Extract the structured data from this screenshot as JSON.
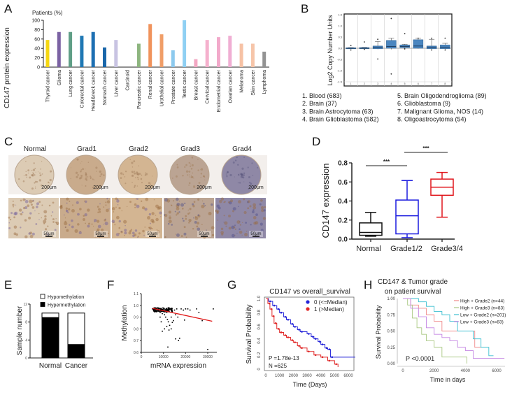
{
  "panels": {
    "A": "A",
    "B": "B",
    "C": "C",
    "D": "D",
    "E": "E",
    "F": "F",
    "G": "G",
    "H": "H"
  },
  "chart_data": [
    {
      "id": "A",
      "type": "bar",
      "title": "Patients (%)",
      "ylabel": "CD147 protein expression",
      "ylim": [
        0,
        100
      ],
      "yticks": [
        0,
        20,
        40,
        60,
        80,
        100
      ],
      "categories": [
        "Thyroid cancer",
        "Glioma",
        "Lung cancer",
        "Colorectal cancer",
        "Head&neck cancer",
        "Stomach cancer",
        "Liver cancer",
        "Carcinoid",
        "Pancreatic cancer",
        "Renal cancer",
        "Urothelial cancer",
        "Prostate cancer",
        "Testis cancer",
        "Breast cancer",
        "Cervical cancer",
        "Endometrial cancer",
        "Ovarian cancer",
        "Melanoma",
        "Skin cancer",
        "Lymphoma"
      ],
      "values": [
        58,
        75,
        75,
        67,
        75,
        42,
        58,
        0,
        50,
        92,
        70,
        36,
        100,
        17,
        58,
        64,
        67,
        50,
        50,
        33
      ],
      "colors": [
        "#f5d712",
        "#7b62a3",
        "#5f9e86",
        "#1f78b4",
        "#1d6fb2",
        "#1a67aa",
        "#c8c3e2",
        "#cccccc",
        "#8db57f",
        "#f0935c",
        "#f09e68",
        "#8ccaee",
        "#8fd0f3",
        "#f2a7c3",
        "#f5b0cd",
        "#f2aacb",
        "#f0aed3",
        "#f6c2a5",
        "#f6c5a9",
        "#939393"
      ]
    },
    {
      "id": "B",
      "type": "box",
      "ylabel": "Log2 Copy Number Units",
      "ylim": [
        -1.5,
        1.5
      ],
      "yticks": [
        "1.5",
        "1.0",
        "0.5",
        "0.0",
        "-0.5",
        "-1.0",
        "-1.5"
      ],
      "categories": [
        "1",
        "2",
        "3",
        "4",
        "5",
        "6",
        "7",
        "8"
      ],
      "boxes": [
        {
          "q1": -0.02,
          "median": 0,
          "q3": 0.02,
          "lo": -0.03,
          "hi": 0.03,
          "outliers": [
            0.12,
            -0.08
          ]
        },
        {
          "q1": -0.02,
          "median": 0,
          "q3": 0.03,
          "lo": -0.03,
          "hi": 0.04,
          "outliers": [
            0.28,
            -0.05
          ]
        },
        {
          "q1": -0.02,
          "median": 0.05,
          "q3": 0.1,
          "lo": -0.05,
          "hi": 0.3,
          "outliers": [
            0.4,
            -0.48
          ]
        },
        {
          "q1": 0,
          "median": 0.08,
          "q3": 0.35,
          "lo": -0.05,
          "hi": 0.45,
          "outliers": [
            1.33,
            -1.15
          ]
        },
        {
          "q1": 0.03,
          "median": 0.08,
          "q3": 0.15,
          "lo": -0.02,
          "hi": 0.18,
          "outliers": [
            0.65,
            -0.03
          ]
        },
        {
          "q1": 0,
          "median": 0.1,
          "q3": 0.38,
          "lo": -0.02,
          "hi": 0.45,
          "outliers": [
            0.45
          ]
        },
        {
          "q1": -0.02,
          "median": 0.05,
          "q3": 0.1,
          "lo": -0.05,
          "hi": 0.4,
          "outliers": [
            0.45,
            -0.08
          ]
        },
        {
          "q1": -0.02,
          "median": 0.05,
          "q3": 0.15,
          "lo": -0.05,
          "hi": 0.22,
          "outliers": [
            0.45,
            -0.08
          ]
        }
      ],
      "legend": [
        "1.  Blood (683)",
        "2.  Brain (37)",
        "3.  Brain Astrocytoma (63)",
        "4.  Brain Glioblastoma (582)",
        "5. Brain Oligodendroglioma (89)",
        "6. Glioblastoma (9)",
        "7. Malignant Glioma, NOS (14)",
        "8. Oligoastrocytoma (54)"
      ],
      "color": "#4a86c0"
    },
    {
      "id": "D",
      "type": "box",
      "ylabel": "CD147 expression",
      "ylim": [
        0,
        0.8
      ],
      "yticks": [
        "0.0",
        "0.2",
        "0.4",
        "0.6",
        "0.8"
      ],
      "categories": [
        "Normal",
        "Grade1/2",
        "Grade3/4"
      ],
      "boxes": [
        {
          "q1": 0.04,
          "median": 0.07,
          "q3": 0.17,
          "lo": 0.03,
          "hi": 0.28,
          "color": "#111111"
        },
        {
          "q1": 0.055,
          "median": 0.245,
          "q3": 0.41,
          "lo": 0.015,
          "hi": 0.615,
          "color": "#1a1adf"
        },
        {
          "q1": 0.46,
          "median": 0.545,
          "q3": 0.63,
          "lo": 0.23,
          "hi": 0.7,
          "color": "#e0161c"
        }
      ],
      "significance": [
        {
          "from": "Normal",
          "to": "Grade1/2",
          "label": "***"
        },
        {
          "from": "Grade1/2",
          "to": "Grade3/4",
          "label": "***"
        }
      ]
    },
    {
      "id": "E",
      "type": "bar",
      "ylabel": "Sample number",
      "ylim": [
        0,
        12
      ],
      "yticks": [
        "0",
        "4",
        "8",
        "12"
      ],
      "categories": [
        "Normal",
        "Cancer"
      ],
      "series": [
        {
          "name": "Hypermethylation",
          "values": [
            9,
            3
          ],
          "color": "#000000"
        },
        {
          "name": "Hypomethylation",
          "values": [
            1,
            7
          ],
          "color": "#ffffff"
        }
      ],
      "legend_order": [
        "Hypomethylation",
        "Hypermethylation"
      ],
      "legend": "top-right"
    },
    {
      "id": "F",
      "type": "scatter",
      "xlabel": "mRNA expression",
      "ylabel": "Methylation",
      "xlim": [
        0,
        33000
      ],
      "ylim": [
        0.6,
        1.1
      ],
      "xticks": [
        "0",
        "10000",
        "20000",
        "30000"
      ],
      "yticks": [
        "0.6",
        "0.7",
        "0.8",
        "0.9",
        "1.0",
        "1.1"
      ],
      "points": [
        [
          5000,
          0.97
        ],
        [
          5500,
          0.96
        ],
        [
          6000,
          0.975
        ],
        [
          6500,
          0.965
        ],
        [
          7000,
          0.97
        ],
        [
          7200,
          0.95
        ],
        [
          7500,
          0.98
        ],
        [
          7800,
          0.96
        ],
        [
          8000,
          0.955
        ],
        [
          8200,
          0.975
        ],
        [
          8500,
          0.94
        ],
        [
          8800,
          0.965
        ],
        [
          9000,
          0.97
        ],
        [
          9200,
          0.95
        ],
        [
          9500,
          0.93
        ],
        [
          9800,
          0.96
        ],
        [
          10000,
          0.975
        ],
        [
          10200,
          0.945
        ],
        [
          10500,
          0.92
        ],
        [
          10800,
          0.96
        ],
        [
          11000,
          0.9
        ],
        [
          11200,
          0.97
        ],
        [
          11500,
          0.94
        ],
        [
          11800,
          0.88
        ],
        [
          12000,
          0.96
        ],
        [
          12200,
          0.86
        ],
        [
          12500,
          0.95
        ],
        [
          12800,
          0.83
        ],
        [
          13000,
          0.97
        ],
        [
          13500,
          0.9
        ],
        [
          14000,
          0.95
        ],
        [
          14500,
          0.87
        ],
        [
          15000,
          0.96
        ],
        [
          15500,
          0.92
        ],
        [
          16000,
          0.97
        ],
        [
          10500,
          0.8
        ],
        [
          9500,
          0.78
        ],
        [
          11500,
          0.82
        ],
        [
          12500,
          0.79
        ],
        [
          15500,
          0.715
        ],
        [
          16800,
          0.7
        ],
        [
          17300,
          0.72
        ],
        [
          12000,
          0.645
        ],
        [
          30000,
          0.625
        ],
        [
          18000,
          0.97
        ],
        [
          19000,
          0.96
        ],
        [
          20000,
          0.97
        ],
        [
          21000,
          0.97
        ],
        [
          22000,
          0.96
        ],
        [
          25000,
          0.97
        ],
        [
          26000,
          0.94
        ],
        [
          27500,
          0.87
        ],
        [
          32500,
          0.97
        ],
        [
          19500,
          0.875
        ],
        [
          16500,
          0.9
        ],
        [
          8500,
          0.9
        ],
        [
          9000,
          0.86
        ],
        [
          13500,
          0.8
        ],
        [
          14000,
          0.855
        ]
      ],
      "fit": [
        [
          5000,
          0.975
        ],
        [
          32000,
          0.865
        ]
      ],
      "point_color": "#000000",
      "fit_color": "#e01a1a"
    },
    {
      "id": "G",
      "type": "line",
      "title": "CD147 vs overall_survival",
      "xlabel": "Time (Days)",
      "ylabel": "Survival  Probability",
      "xlim": [
        0,
        6500
      ],
      "ylim": [
        0,
        1
      ],
      "xticks": [
        "0",
        "1000",
        "2000",
        "3000",
        "4000",
        "5000",
        "6000"
      ],
      "yticks": [
        "0",
        "0.2",
        "0.4",
        "0.6",
        "0.8",
        "1.0"
      ],
      "series": [
        {
          "name": "0 (<=Median)",
          "color": "#2424d8",
          "points": [
            [
              0,
              1
            ],
            [
              200,
              0.96
            ],
            [
              500,
              0.9
            ],
            [
              800,
              0.85
            ],
            [
              1000,
              0.8
            ],
            [
              1300,
              0.74
            ],
            [
              1500,
              0.7
            ],
            [
              1800,
              0.64
            ],
            [
              2000,
              0.6
            ],
            [
              2300,
              0.56
            ],
            [
              2500,
              0.53
            ],
            [
              3000,
              0.5
            ],
            [
              3300,
              0.46
            ],
            [
              3500,
              0.43
            ],
            [
              3800,
              0.39
            ],
            [
              4000,
              0.35
            ],
            [
              4300,
              0.3
            ],
            [
              4500,
              0.28
            ],
            [
              4700,
              0.17
            ],
            [
              6500,
              0.17
            ]
          ]
        },
        {
          "name": "1 (>Median)",
          "color": "#e02828",
          "points": [
            [
              0,
              1
            ],
            [
              150,
              0.93
            ],
            [
              300,
              0.85
            ],
            [
              450,
              0.75
            ],
            [
              600,
              0.65
            ],
            [
              800,
              0.57
            ],
            [
              1000,
              0.52
            ],
            [
              1300,
              0.48
            ],
            [
              1500,
              0.45
            ],
            [
              1800,
              0.41
            ],
            [
              2000,
              0.38
            ],
            [
              2300,
              0.33
            ],
            [
              2500,
              0.3
            ],
            [
              3000,
              0.25
            ],
            [
              3500,
              0.2
            ],
            [
              4000,
              0.17
            ],
            [
              4500,
              0.12
            ],
            [
              5000,
              0.07
            ],
            [
              5250,
              0.03
            ]
          ]
        }
      ],
      "annotations": {
        "p": "P =1.78e-13",
        "n": "N =625"
      },
      "legend": "top-right"
    },
    {
      "id": "H",
      "type": "line",
      "title": [
        "CD147 & Tumor grade",
        "on patient survival"
      ],
      "xlabel": "Time in days",
      "ylabel": "Survival Probability",
      "xlim": [
        0,
        6500
      ],
      "ylim": [
        0,
        1
      ],
      "xticks": [
        "0",
        "2000",
        "4000",
        "6000"
      ],
      "yticks": [
        "0.00",
        "0.25",
        "0.50",
        "0.75",
        "1.00"
      ],
      "series": [
        {
          "name": "High + Grade2 (n=44)",
          "color": "#f08a8a",
          "points": [
            [
              0,
              1
            ],
            [
              500,
              0.9
            ],
            [
              1000,
              0.85
            ],
            [
              1500,
              0.75
            ],
            [
              2000,
              0.65
            ],
            [
              2500,
              0.5
            ],
            [
              4500,
              0.5
            ],
            [
              4600,
              0.25
            ],
            [
              5000,
              0.25
            ]
          ]
        },
        {
          "name": "High + Grade3 (n=83)",
          "color": "#a9c882",
          "points": [
            [
              0,
              1
            ],
            [
              300,
              0.9
            ],
            [
              600,
              0.7
            ],
            [
              900,
              0.55
            ],
            [
              1200,
              0.45
            ],
            [
              1500,
              0.35
            ],
            [
              2000,
              0.25
            ],
            [
              2500,
              0.1
            ],
            [
              4000,
              0.1
            ],
            [
              4100,
              0
            ]
          ]
        },
        {
          "name": "Low + Grade2 (n=201)",
          "color": "#3cbfd0",
          "points": [
            [
              0,
              1
            ],
            [
              1000,
              0.95
            ],
            [
              1500,
              0.88
            ],
            [
              2000,
              0.8
            ],
            [
              2500,
              0.75
            ],
            [
              3000,
              0.65
            ],
            [
              3500,
              0.5
            ],
            [
              4000,
              0.5
            ],
            [
              4500,
              0.38
            ],
            [
              5000,
              0.25
            ],
            [
              5500,
              0.12
            ],
            [
              5800,
              0.12
            ]
          ]
        },
        {
          "name": "Low + Grade3 (n=83)",
          "color": "#c485e3",
          "points": [
            [
              0,
              1
            ],
            [
              500,
              0.85
            ],
            [
              1000,
              0.72
            ],
            [
              1500,
              0.55
            ],
            [
              2000,
              0.45
            ],
            [
              2500,
              0.4
            ],
            [
              3000,
              0.35
            ],
            [
              3500,
              0.25
            ],
            [
              4000,
              0.2
            ],
            [
              4500,
              0.08
            ],
            [
              6500,
              0.08
            ]
          ]
        }
      ],
      "annotations": {
        "p": "P <0.0001"
      },
      "legend": "top-right"
    }
  ],
  "histology": {
    "columns": [
      "Normal",
      "Grad1",
      "Grad2",
      "Grad3",
      "Grad4"
    ],
    "tints": [
      "#dccbb4",
      "#c9ab8c",
      "#d3b592",
      "#bba493",
      "#8f88a6"
    ],
    "scale_top": "200μm",
    "scale_bottom": "50μm"
  }
}
